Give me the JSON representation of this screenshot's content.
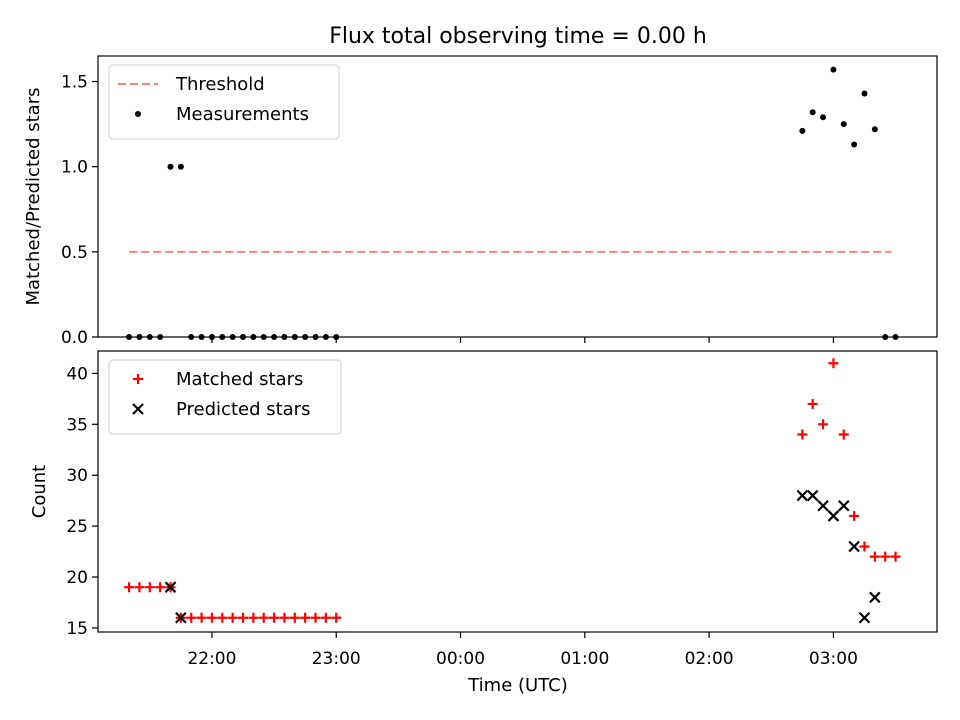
{
  "title": "Flux total observing time = 0.00 h",
  "xlabel": "Time (UTC)",
  "x_tick_labels": [
    "22:00",
    "23:00",
    "00:00",
    "01:00",
    "02:00",
    "03:00"
  ],
  "chart_data": [
    {
      "type": "scatter",
      "ylabel": "Matched/Predicted stars",
      "ylim": [
        0,
        1.65
      ],
      "xlim": [
        "21:05",
        "03:50"
      ],
      "y_ticks": [
        0.0,
        0.5,
        1.0,
        1.5
      ],
      "y_tick_labels": [
        "0.0",
        "0.5",
        "1.0",
        "1.5"
      ],
      "legend": {
        "placement": "top-left"
      },
      "threshold": {
        "name": "Threshold",
        "value": 0.5,
        "x_range": [
          "21:20",
          "03:28"
        ],
        "color": "#ff7f7f",
        "style": "dashed"
      },
      "series": [
        {
          "name": "Measurements",
          "marker": "dot",
          "color": "#000000",
          "x": [
            "21:20",
            "21:25",
            "21:30",
            "21:35",
            "21:40",
            "21:45",
            "21:50",
            "21:55",
            "22:00",
            "22:05",
            "22:10",
            "22:15",
            "22:20",
            "22:25",
            "22:30",
            "22:35",
            "22:40",
            "22:45",
            "22:50",
            "22:55",
            "23:00",
            "02:45",
            "02:50",
            "02:55",
            "03:00",
            "03:05",
            "03:10",
            "03:15",
            "03:20",
            "03:25",
            "03:30"
          ],
          "y": [
            0,
            0,
            0,
            0,
            1.0,
            1.0,
            0,
            0,
            0,
            0,
            0,
            0,
            0,
            0,
            0,
            0,
            0,
            0,
            0,
            0,
            0,
            1.21,
            1.32,
            1.29,
            1.57,
            1.25,
            1.13,
            1.43,
            1.22,
            0,
            0
          ]
        }
      ]
    },
    {
      "type": "scatter",
      "ylabel": "Count",
      "ylim": [
        14.6,
        42.2
      ],
      "xlim": [
        "21:05",
        "03:50"
      ],
      "y_ticks": [
        15,
        20,
        25,
        30,
        35,
        40
      ],
      "y_tick_labels": [
        "15",
        "20",
        "25",
        "30",
        "35",
        "40"
      ],
      "legend": {
        "placement": "top-left"
      },
      "series": [
        {
          "name": "Matched stars",
          "marker": "plus",
          "color": "#ff0000",
          "x": [
            "21:20",
            "21:25",
            "21:30",
            "21:35",
            "21:40",
            "21:45",
            "21:50",
            "21:55",
            "22:00",
            "22:05",
            "22:10",
            "22:15",
            "22:20",
            "22:25",
            "22:30",
            "22:35",
            "22:40",
            "22:45",
            "22:50",
            "22:55",
            "23:00",
            "02:45",
            "02:50",
            "02:55",
            "03:00",
            "03:05",
            "03:10",
            "03:15",
            "03:20",
            "03:25",
            "03:30"
          ],
          "y": [
            19,
            19,
            19,
            19,
            19,
            16,
            16,
            16,
            16,
            16,
            16,
            16,
            16,
            16,
            16,
            16,
            16,
            16,
            16,
            16,
            16,
            34,
            37,
            35,
            41,
            34,
            26,
            23,
            22,
            22,
            22
          ]
        },
        {
          "name": "Predicted stars",
          "marker": "cross",
          "color": "#000000",
          "x": [
            "21:40",
            "21:45",
            "02:45",
            "02:50",
            "02:55",
            "03:00",
            "03:05",
            "03:10",
            "03:15",
            "03:20"
          ],
          "y": [
            19,
            16,
            28,
            28,
            27,
            26,
            27,
            23,
            16,
            18
          ]
        }
      ]
    }
  ]
}
